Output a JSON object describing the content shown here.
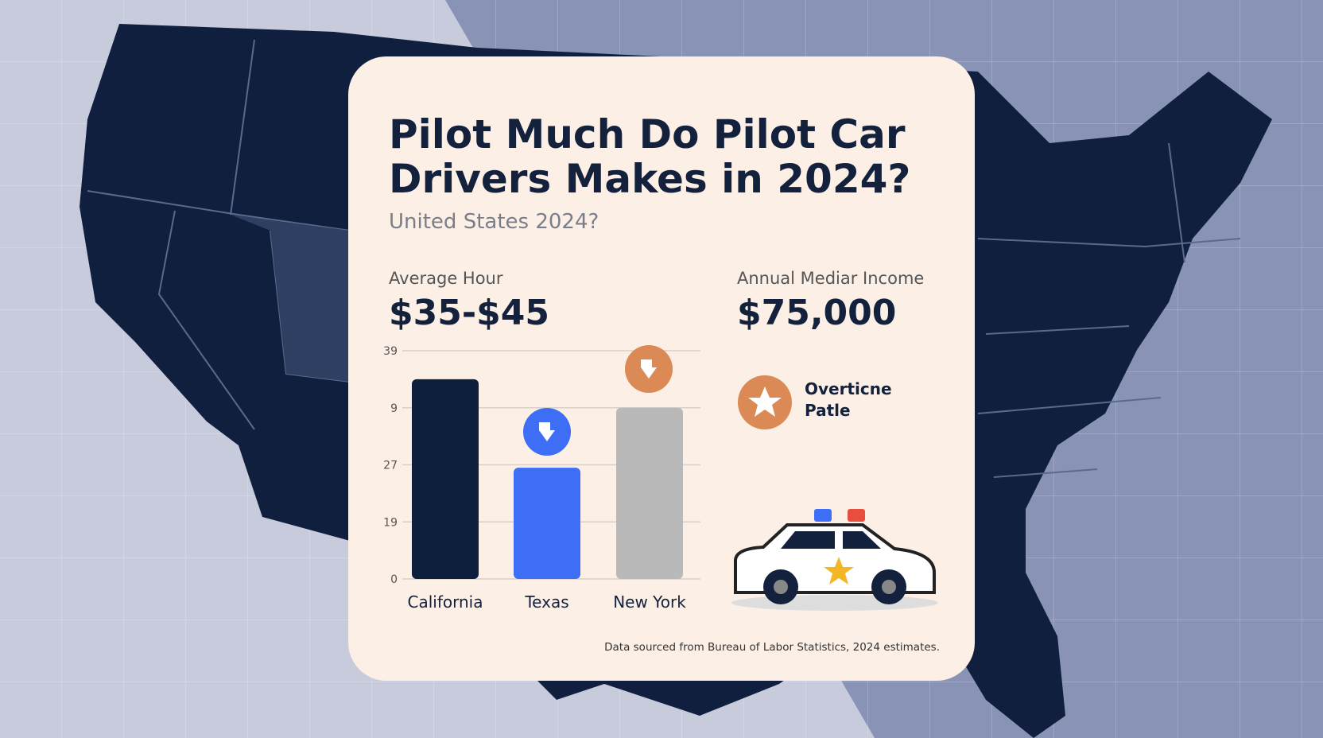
{
  "header": {
    "title_lines": [
      "Pilot Much Do Pilot Car",
      "Drivers Makes in 2024?"
    ],
    "subtitle": "United States  2024?"
  },
  "stats": [
    {
      "label": "Average Hour",
      "value": "$35-$45"
    },
    {
      "label": "Annual Mediar Income",
      "value": "$75,000"
    }
  ],
  "badge": {
    "lines": [
      "Overtiсne",
      "Patle"
    ]
  },
  "footnote": "Data sourced from Bureau of Labor Statistics, 2024 estimates.",
  "chart_data": {
    "type": "bar",
    "categories": [
      "California",
      "Texas",
      "New York"
    ],
    "values": [
      35,
      19.5,
      30
    ],
    "colors": [
      "#0d1f3c",
      "#3d6ef5",
      "#b9b9b9"
    ],
    "ylim": [
      0,
      40
    ],
    "yticks": [
      0,
      {
        "value": 10,
        "label": "19"
      },
      {
        "value": 20,
        "label": "27"
      },
      {
        "value": 30,
        "label": "9"
      },
      {
        "value": 40,
        "label": "39"
      }
    ],
    "grid": true
  }
}
